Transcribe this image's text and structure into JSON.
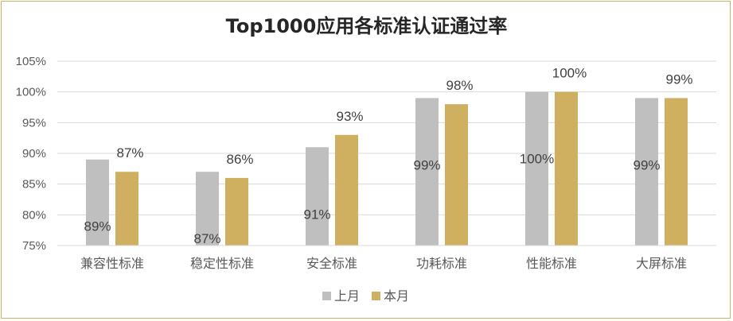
{
  "chart_data": {
    "type": "bar",
    "title": "Top1000应用各标准认证通过率",
    "categories": [
      "兼容性标准",
      "稳定性标准",
      "安全标准",
      "功耗标准",
      "性能标准",
      "大屏标准"
    ],
    "series": [
      {
        "name": "上月",
        "values": [
          89,
          87,
          91,
          99,
          100,
          99
        ],
        "labels": [
          "89%",
          "87%",
          "91%",
          "99%",
          "100%",
          "99%"
        ],
        "color": "#bfbfbf"
      },
      {
        "name": "本月",
        "values": [
          87,
          86,
          93,
          98,
          100,
          99
        ],
        "labels": [
          "87%",
          "86%",
          "93%",
          "98%",
          "100%",
          "99%"
        ],
        "color": "#cfb061"
      }
    ],
    "yticks": [
      "75%",
      "80%",
      "85%",
      "90%",
      "95%",
      "100%",
      "105%"
    ],
    "ylim": [
      75,
      105
    ],
    "grid": true,
    "legend": "bottom"
  }
}
